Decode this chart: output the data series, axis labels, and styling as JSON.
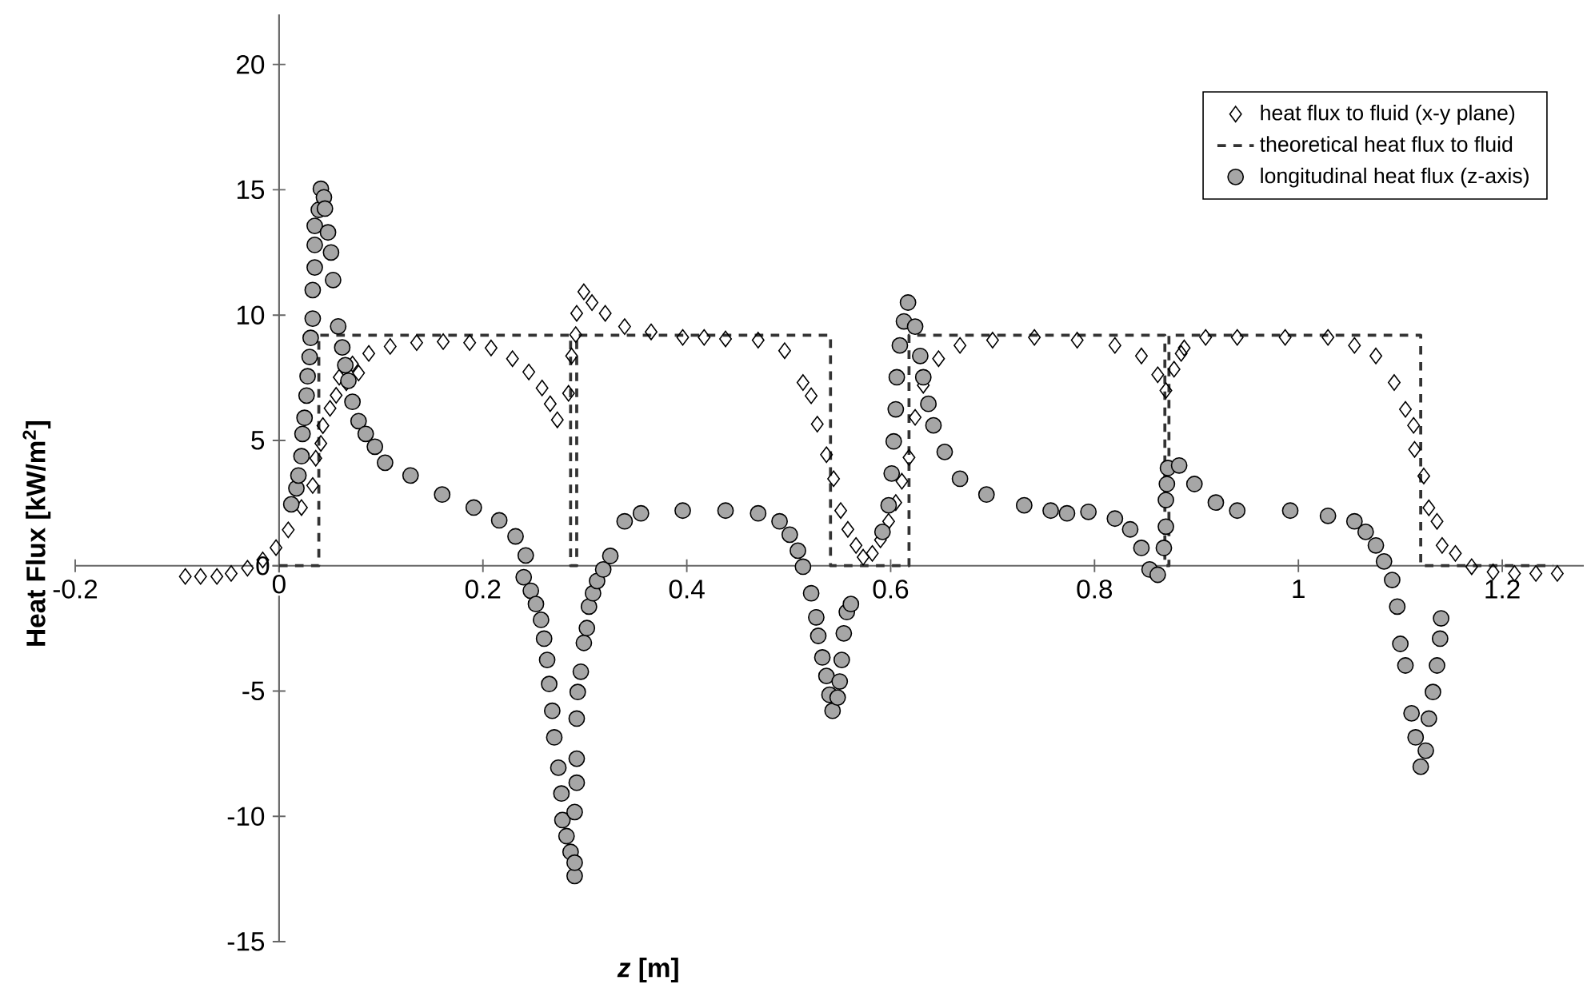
{
  "chart_data": {
    "type": "scatter",
    "xlabel": "*z* [m]",
    "ylabel": "Heat Flux [kW/m$^{2}$]",
    "xlim": [
      -0.2,
      1.28
    ],
    "ylim": [
      -15,
      22
    ],
    "xticks": [
      -0.2,
      0,
      0.2,
      0.4,
      0.6,
      0.8,
      1,
      1.2
    ],
    "yticks": [
      -15,
      -10,
      -5,
      0,
      5,
      10,
      15,
      20
    ],
    "grid": false,
    "legend": "top right",
    "series": [
      {
        "name": "heat flux to fluid (x-y plane)",
        "marker": "diamond",
        "color": "#000000",
        "x": [
          -0.092,
          -0.077,
          -0.061,
          -0.047,
          -0.031,
          -0.016,
          -0.003,
          0.009,
          0.022,
          0.033,
          0.036,
          0.041,
          0.043,
          0.05,
          0.056,
          0.059,
          0.066,
          0.072,
          0.078,
          0.088,
          0.109,
          0.135,
          0.161,
          0.187,
          0.208,
          0.229,
          0.245,
          0.258,
          0.266,
          0.273,
          0.284,
          0.287,
          0.291,
          0.292,
          0.299,
          0.307,
          0.32,
          0.339,
          0.365,
          0.396,
          0.417,
          0.438,
          0.47,
          0.496,
          0.514,
          0.522,
          0.528,
          0.537,
          0.544,
          0.551,
          0.558,
          0.566,
          0.573,
          0.582,
          0.59,
          0.598,
          0.605,
          0.611,
          0.618,
          0.624,
          0.632,
          0.647,
          0.668,
          0.7,
          0.741,
          0.783,
          0.82,
          0.846,
          0.862,
          0.87,
          0.878,
          0.885,
          0.888,
          0.909,
          0.94,
          0.987,
          1.029,
          1.055,
          1.076,
          1.094,
          1.105,
          1.113,
          1.114,
          1.123,
          1.128,
          1.136,
          1.141,
          1.154,
          1.17,
          1.191,
          1.212,
          1.233,
          1.254
        ],
        "values": [
          -0.43,
          -0.43,
          -0.43,
          -0.31,
          -0.1,
          0.23,
          0.72,
          1.43,
          2.32,
          3.2,
          4.29,
          4.88,
          5.59,
          6.28,
          6.8,
          7.52,
          7.3,
          8.05,
          7.69,
          8.47,
          8.75,
          8.9,
          8.94,
          8.9,
          8.69,
          8.26,
          7.73,
          7.09,
          6.46,
          5.82,
          6.88,
          8.37,
          9.22,
          10.07,
          10.93,
          10.5,
          10.07,
          9.54,
          9.33,
          9.11,
          9.11,
          9.05,
          9.0,
          8.58,
          7.31,
          6.78,
          5.65,
          4.43,
          3.47,
          2.2,
          1.45,
          0.81,
          0.34,
          0.49,
          1.03,
          1.77,
          2.52,
          3.37,
          4.32,
          5.92,
          7.2,
          8.26,
          8.79,
          9.0,
          9.11,
          9.0,
          8.79,
          8.37,
          7.62,
          6.99,
          7.84,
          8.47,
          8.69,
          9.11,
          9.11,
          9.11,
          9.11,
          8.79,
          8.37,
          7.31,
          6.24,
          5.6,
          4.64,
          3.58,
          2.31,
          1.77,
          0.81,
          0.49,
          -0.04,
          -0.25,
          -0.31,
          -0.31,
          -0.31
        ]
      },
      {
        "name": "theoretical heat flux to fluid",
        "type": "line",
        "marker": "none",
        "line_style": "dashed",
        "color": "#333333",
        "x": [
          0,
          0.039,
          0.039,
          0.286,
          0.286,
          0.292,
          0.292,
          0.541,
          0.541,
          0.618,
          0.618,
          0.869,
          0.869,
          0.873,
          0.873,
          1.12,
          1.12,
          1.25
        ],
        "values": [
          0,
          0,
          9.2,
          9.2,
          0,
          0,
          9.2,
          9.2,
          0,
          0,
          9.2,
          9.2,
          0,
          0,
          9.2,
          9.2,
          0,
          0
        ]
      },
      {
        "name": "longitudinal heat flux (z-axis)",
        "marker": "circle",
        "color": "#a6a6a6",
        "x": [
          0.012,
          0.017,
          0.019,
          0.022,
          0.023,
          0.025,
          0.027,
          0.028,
          0.03,
          0.031,
          0.033,
          0.033,
          0.035,
          0.035,
          0.035,
          0.039,
          0.041,
          0.044,
          0.045,
          0.048,
          0.051,
          0.053,
          0.058,
          0.062,
          0.065,
          0.068,
          0.072,
          0.078,
          0.085,
          0.094,
          0.104,
          0.129,
          0.16,
          0.191,
          0.216,
          0.232,
          0.242,
          0.24,
          0.247,
          0.252,
          0.257,
          0.26,
          0.263,
          0.265,
          0.268,
          0.27,
          0.274,
          0.277,
          0.278,
          0.282,
          0.286,
          0.29,
          0.29,
          0.29,
          0.292,
          0.292,
          0.292,
          0.293,
          0.296,
          0.299,
          0.302,
          0.304,
          0.308,
          0.312,
          0.318,
          0.325,
          0.339,
          0.355,
          0.396,
          0.438,
          0.47,
          0.491,
          0.501,
          0.509,
          0.514,
          0.522,
          0.527,
          0.529,
          0.533,
          0.537,
          0.54,
          0.543,
          0.548,
          0.55,
          0.552,
          0.554,
          0.557,
          0.561,
          0.592,
          0.598,
          0.601,
          0.603,
          0.605,
          0.606,
          0.609,
          0.613,
          0.617,
          0.624,
          0.629,
          0.632,
          0.637,
          0.642,
          0.653,
          0.668,
          0.694,
          0.731,
          0.757,
          0.773,
          0.794,
          0.82,
          0.835,
          0.846,
          0.854,
          0.862,
          0.868,
          0.87,
          0.87,
          0.871,
          0.872,
          0.883,
          0.898,
          0.919,
          0.94,
          0.992,
          1.029,
          1.055,
          1.066,
          1.076,
          1.084,
          1.092,
          1.097,
          1.1,
          1.105,
          1.111,
          1.115,
          1.12,
          1.125,
          1.128,
          1.132,
          1.136,
          1.139,
          1.14
        ],
        "values": [
          2.45,
          3.09,
          3.6,
          4.37,
          5.26,
          5.9,
          6.79,
          7.56,
          8.33,
          9.09,
          9.86,
          11.0,
          11.9,
          12.8,
          13.56,
          14.2,
          15.04,
          14.7,
          14.25,
          13.3,
          12.5,
          11.4,
          9.55,
          8.71,
          8.0,
          7.38,
          6.54,
          5.77,
          5.26,
          4.75,
          4.11,
          3.6,
          2.84,
          2.32,
          1.81,
          1.17,
          0.41,
          -0.46,
          -1.0,
          -1.53,
          -2.16,
          -2.91,
          -3.76,
          -4.72,
          -5.79,
          -6.85,
          -8.06,
          -9.09,
          -10.15,
          -10.79,
          -11.42,
          -12.38,
          -11.85,
          -9.83,
          -8.66,
          -7.7,
          -6.1,
          -5.04,
          -4.23,
          -3.08,
          -2.49,
          -1.63,
          -1.1,
          -0.61,
          -0.15,
          0.39,
          1.77,
          2.09,
          2.2,
          2.2,
          2.09,
          1.77,
          1.24,
          0.6,
          -0.04,
          -1.1,
          -2.06,
          -2.8,
          -3.66,
          -4.4,
          -5.15,
          -5.79,
          -5.26,
          -4.62,
          -3.76,
          -2.7,
          -1.85,
          -1.53,
          1.35,
          2.41,
          3.68,
          4.96,
          6.24,
          7.52,
          8.79,
          9.75,
          10.5,
          9.54,
          8.37,
          7.52,
          6.46,
          5.6,
          4.54,
          3.47,
          2.84,
          2.41,
          2.2,
          2.09,
          2.15,
          1.88,
          1.45,
          0.71,
          -0.15,
          -0.36,
          0.71,
          1.56,
          2.62,
          3.26,
          3.9,
          4.0,
          3.26,
          2.52,
          2.2,
          2.2,
          1.99,
          1.77,
          1.35,
          0.81,
          0.17,
          -0.57,
          -1.63,
          -3.12,
          -3.98,
          -5.89,
          -6.85,
          -8.02,
          -7.38,
          -6.1,
          -5.04,
          -3.98,
          -2.91,
          -2.1
        ]
      }
    ]
  }
}
